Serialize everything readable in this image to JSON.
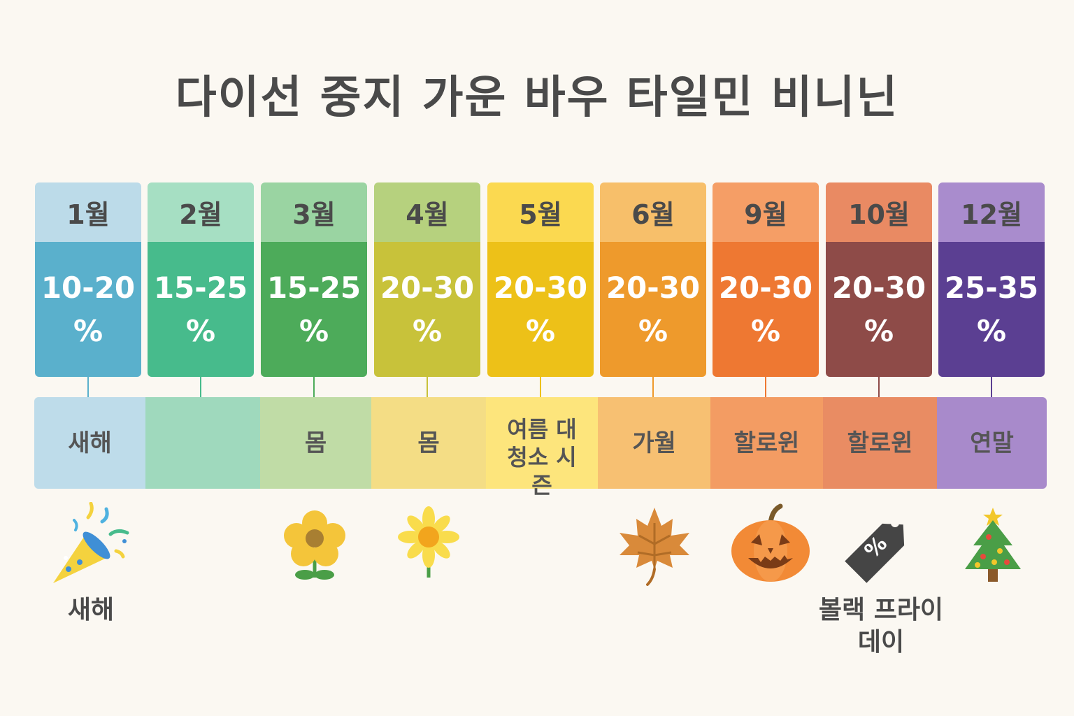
{
  "title": "다이선 중지 가운 바우 타일민 비니닌",
  "months": [
    {
      "month": "1월",
      "range": "10-20",
      "unit": "%",
      "top_color": "#bcdbe9",
      "bottom_color": "#5ab0cc"
    },
    {
      "month": "2월",
      "range": "15-25",
      "unit": "%",
      "top_color": "#a6dfc3",
      "bottom_color": "#47bb8c"
    },
    {
      "month": "3월",
      "range": "15-25",
      "unit": "%",
      "top_color": "#9ad4a2",
      "bottom_color": "#4dab5a"
    },
    {
      "month": "4월",
      "range": "20-30",
      "unit": "%",
      "top_color": "#b6d17e",
      "bottom_color": "#c8c23a"
    },
    {
      "month": "5월",
      "range": "20-30",
      "unit": "%",
      "top_color": "#fbd950",
      "bottom_color": "#edc118"
    },
    {
      "month": "6월",
      "range": "20-30",
      "unit": "%",
      "top_color": "#f7bf6a",
      "bottom_color": "#ee9a2c"
    },
    {
      "month": "9월",
      "range": "20-30",
      "unit": "%",
      "top_color": "#f59e66",
      "bottom_color": "#ee7832"
    },
    {
      "month": "10월",
      "range": "20-30",
      "unit": "%",
      "top_color": "#e98a63",
      "bottom_color": "#8e4b48"
    },
    {
      "month": "12월",
      "range": "25-35",
      "unit": "%",
      "top_color": "#a98ccd",
      "bottom_color": "#5b3f92"
    }
  ],
  "bands": [
    {
      "label": "새해",
      "color": "#bedcea"
    },
    {
      "label": "",
      "color": "#9fd9bd"
    },
    {
      "label": "몸",
      "color": "#c0dca6"
    },
    {
      "label": "몸",
      "color": "#f4dd85"
    },
    {
      "label": "여름 대청소 시즌",
      "color": "#fde57c"
    },
    {
      "label": "가월",
      "color": "#f7c072"
    },
    {
      "label": "할로윈",
      "color": "#f39c63"
    },
    {
      "label": "할로윈",
      "color": "#e98c63"
    },
    {
      "label": "연말",
      "color": "#a88acb"
    }
  ],
  "icons": {
    "party_popper": "party-popper-icon",
    "flower": "flower-icon",
    "sunflower": "sunflower-icon",
    "maple_leaf": "maple-leaf-icon",
    "pumpkin": "pumpkin-icon",
    "price_tag": "price-tag-icon",
    "tree": "christmas-tree-icon"
  },
  "events": {
    "new_year": "새해",
    "black_friday": "볼랙 프라이데이"
  }
}
